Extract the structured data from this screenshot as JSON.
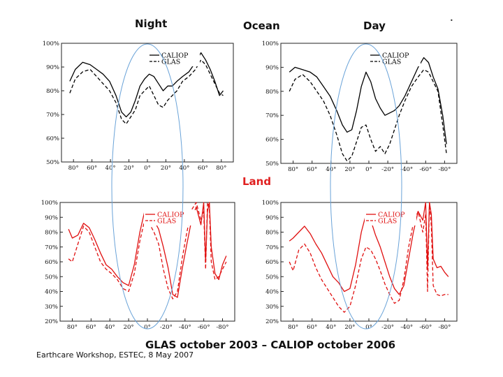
{
  "headers": {
    "night": "Night",
    "ocean": "Ocean",
    "day": "Day",
    "land": "Land"
  },
  "main_title": "GLAS october 2003 – CALIOP october 2006",
  "footer": "Earthcare Workshop, ESTEC, 8 May 2007",
  "colors": {
    "ocean": "#000000",
    "land": "#e01010",
    "orbit": "#6aa3d8"
  },
  "chart_data": [
    {
      "id": "ocean-night",
      "type": "line",
      "ylim": [
        50,
        100
      ],
      "yticks": [
        "100%",
        "90%",
        "80%",
        "70%",
        "60%",
        "50%"
      ],
      "xticks": [
        "80°",
        "60°",
        "40°",
        "20°",
        "0°",
        "20°",
        "40°",
        "60°",
        "80°"
      ],
      "legend": [
        "CALIOP",
        "GLAS"
      ],
      "series": [
        {
          "name": "CALIOP",
          "style": "solid",
          "x": [
            84,
            78,
            70,
            62,
            55,
            48,
            41,
            34,
            28,
            23,
            18,
            13,
            8,
            3,
            -2,
            -7,
            -12,
            -17,
            -22,
            -27,
            -32,
            -38,
            -45,
            -52,
            -58,
            -63,
            -68,
            -73,
            -78,
            -82
          ],
          "y": [
            84,
            89,
            92,
            91,
            89,
            87,
            84,
            78,
            71,
            69,
            71,
            76,
            82,
            85,
            87,
            86,
            83,
            80,
            82,
            82,
            84,
            86,
            88,
            92,
            96,
            93,
            89,
            84,
            78,
            80
          ]
        },
        {
          "name": "GLAS",
          "style": "dash",
          "x": [
            84,
            78,
            70,
            62,
            55,
            48,
            41,
            34,
            28,
            23,
            18,
            13,
            8,
            3,
            -2,
            -7,
            -12,
            -17,
            -22,
            -27,
            -32,
            -38,
            -45,
            -52,
            -58,
            -63,
            -68,
            -73,
            -78,
            -82
          ],
          "y": [
            79,
            85,
            88,
            89,
            86,
            83,
            80,
            75,
            68,
            66,
            69,
            72,
            78,
            80,
            82,
            78,
            74,
            73,
            76,
            78,
            80,
            84,
            86,
            89,
            93,
            91,
            87,
            83,
            79,
            78
          ]
        }
      ]
    },
    {
      "id": "ocean-day",
      "type": "line",
      "ylim": [
        50,
        100
      ],
      "yticks": [
        "100%",
        "90%",
        "80%",
        "70%",
        "60%",
        "50%"
      ],
      "xticks": [
        "80°",
        "60°",
        "40°",
        "20°",
        "0°",
        "-20°",
        "-40°",
        "-60°",
        "-80°"
      ],
      "legend": [
        "CALIOP",
        "GLAS"
      ],
      "series": [
        {
          "name": "CALIOP",
          "style": "solid",
          "x": [
            84,
            78,
            70,
            62,
            55,
            48,
            41,
            34,
            28,
            23,
            18,
            13,
            8,
            3,
            -2,
            -7,
            -12,
            -17,
            -22,
            -27,
            -32,
            -38,
            -45,
            -52,
            -58,
            -63,
            -68,
            -73,
            -78,
            -82
          ],
          "y": [
            88,
            90,
            89,
            88,
            86,
            82,
            78,
            72,
            66,
            63,
            64,
            72,
            82,
            88,
            84,
            77,
            73,
            70,
            71,
            72,
            74,
            78,
            84,
            90,
            94,
            92,
            86,
            81,
            70,
            58
          ]
        },
        {
          "name": "GLAS",
          "style": "dash",
          "x": [
            84,
            78,
            70,
            62,
            55,
            48,
            41,
            34,
            28,
            23,
            18,
            13,
            8,
            3,
            -2,
            -7,
            -12,
            -17,
            -22,
            -27,
            -32,
            -38,
            -45,
            -52,
            -58,
            -63,
            -68,
            -73,
            -78,
            -82
          ],
          "y": [
            80,
            85,
            87,
            84,
            80,
            76,
            70,
            62,
            54,
            51,
            53,
            59,
            65,
            66,
            60,
            55,
            57,
            54,
            58,
            64,
            70,
            76,
            82,
            86,
            89,
            88,
            84,
            80,
            66,
            54
          ]
        }
      ]
    },
    {
      "id": "land-night",
      "type": "line",
      "ylim": [
        20,
        100
      ],
      "yticks": [
        "100%",
        "90%",
        "80%",
        "70%",
        "60%",
        "50%",
        "40%",
        "30%",
        "20%"
      ],
      "xticks": [
        "80°",
        "60°",
        "40°",
        "20°",
        "0°",
        "-20°",
        "-40°",
        "-60°",
        "-80°"
      ],
      "legend": [
        "CALIOP",
        "GLAS"
      ],
      "series": [
        {
          "name": "CALIOP",
          "style": "solid",
          "x": [
            84,
            80,
            74,
            68,
            62,
            56,
            50,
            44,
            38,
            32,
            26,
            20,
            14,
            8,
            3,
            -2,
            -7,
            -12,
            -17,
            -22,
            -27,
            -32,
            -37,
            -42,
            -47,
            -52,
            -57,
            -60,
            -62,
            -64,
            -66,
            -68,
            -72,
            -76,
            -80,
            -84
          ],
          "y": [
            82,
            76,
            78,
            86,
            83,
            75,
            66,
            58,
            55,
            50,
            46,
            44,
            58,
            80,
            94,
            91,
            88,
            82,
            70,
            56,
            38,
            36,
            55,
            72,
            88,
            97,
            85,
            100,
            60,
            94,
            100,
            70,
            52,
            48,
            58,
            64
          ]
        },
        {
          "name": "GLAS",
          "style": "dash",
          "x": [
            84,
            80,
            74,
            68,
            62,
            56,
            50,
            44,
            38,
            32,
            26,
            20,
            14,
            8,
            3,
            -2,
            -7,
            -12,
            -17,
            -22,
            -27,
            -32,
            -37,
            -42,
            -47,
            -52,
            -57,
            -60,
            -62,
            -64,
            -66,
            -68,
            -72,
            -76,
            -80,
            -84
          ],
          "y": [
            62,
            60,
            72,
            84,
            80,
            70,
            60,
            55,
            52,
            48,
            42,
            40,
            52,
            74,
            88,
            86,
            80,
            72,
            55,
            42,
            35,
            40,
            62,
            80,
            95,
            100,
            88,
            94,
            55,
            100,
            96,
            60,
            48,
            50,
            55,
            60
          ]
        }
      ]
    },
    {
      "id": "land-day",
      "type": "line",
      "ylim": [
        20,
        100
      ],
      "yticks": [
        "100%",
        "90%",
        "80%",
        "70%",
        "60%",
        "50%",
        "40%",
        "30%",
        "20%"
      ],
      "xticks": [
        "80°",
        "60°",
        "40°",
        "20°",
        "0°",
        "-20°",
        "-40°",
        "-60°",
        "-80°"
      ],
      "legend": [
        "CALIOP",
        "GLAS"
      ],
      "series": [
        {
          "name": "CALIOP",
          "style": "solid",
          "x": [
            84,
            80,
            74,
            68,
            62,
            56,
            50,
            44,
            38,
            32,
            26,
            20,
            14,
            8,
            3,
            -2,
            -7,
            -12,
            -17,
            -22,
            -27,
            -32,
            -37,
            -42,
            -47,
            -52,
            -57,
            -60,
            -62,
            -64,
            -66,
            -68,
            -72,
            -76,
            -80,
            -84
          ],
          "y": [
            74,
            76,
            80,
            84,
            79,
            72,
            66,
            58,
            50,
            46,
            40,
            42,
            58,
            80,
            92,
            88,
            78,
            70,
            60,
            50,
            42,
            38,
            44,
            62,
            80,
            94,
            88,
            100,
            55,
            100,
            92,
            62,
            56,
            57,
            53,
            50
          ]
        },
        {
          "name": "GLAS",
          "style": "dash",
          "x": [
            84,
            80,
            74,
            68,
            62,
            56,
            50,
            44,
            38,
            32,
            26,
            20,
            14,
            8,
            3,
            -2,
            -7,
            -12,
            -17,
            -22,
            -27,
            -32,
            -37,
            -42,
            -47,
            -52,
            -57,
            -60,
            -62,
            -64,
            -66,
            -68,
            -72,
            -76,
            -80,
            -84
          ],
          "y": [
            60,
            54,
            68,
            72,
            66,
            56,
            48,
            42,
            36,
            30,
            26,
            30,
            44,
            62,
            70,
            68,
            62,
            54,
            45,
            38,
            32,
            34,
            48,
            70,
            86,
            94,
            80,
            92,
            40,
            100,
            84,
            44,
            38,
            37,
            38,
            38
          ]
        }
      ]
    }
  ]
}
